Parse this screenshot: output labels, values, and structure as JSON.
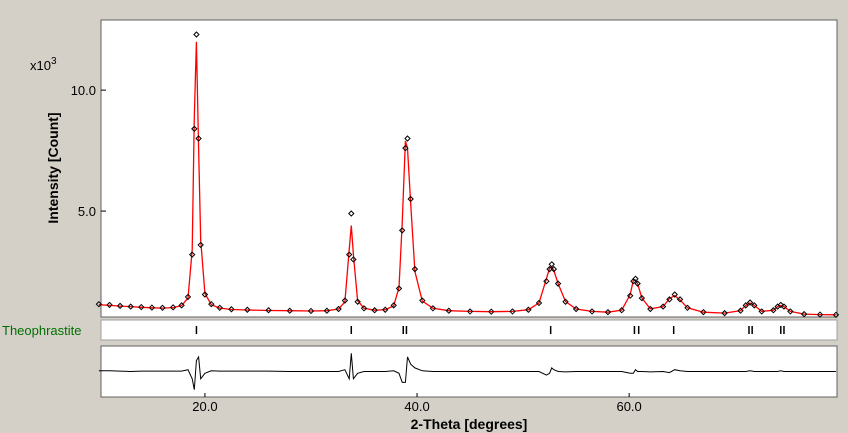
{
  "chart_data": {
    "type": "xrd",
    "x_label": "2-Theta [degrees]",
    "y_label": "Intensity [Count]",
    "y_scale_label": "x10",
    "y_scale_exponent": "3",
    "xlim": [
      10.2,
      79.6
    ],
    "xticks": [
      {
        "value": 20,
        "label": "20.0"
      },
      {
        "value": 40,
        "label": "40.0"
      },
      {
        "value": 60,
        "label": "60.0"
      }
    ],
    "ylim": [
      0.62,
      12.9
    ],
    "yticks": [
      {
        "value": 5,
        "label": "5.0"
      },
      {
        "value": 10,
        "label": "10.0"
      }
    ],
    "x": [
      10,
      11,
      12,
      13,
      14,
      15,
      16,
      17,
      17.8,
      18.4,
      18.8,
      19.0,
      19.2,
      19.4,
      19.6,
      20.0,
      20.6,
      21.4,
      22.5,
      24,
      26,
      28,
      30,
      31.5,
      32.6,
      33.2,
      33.6,
      33.8,
      34.0,
      34.4,
      35,
      36,
      37,
      37.8,
      38.3,
      38.6,
      38.9,
      39.1,
      39.4,
      39.8,
      40.5,
      41.5,
      43,
      45,
      47,
      49,
      50.5,
      51.5,
      52.2,
      52.5,
      52.7,
      52.9,
      53.3,
      54,
      55,
      56.5,
      58,
      59.3,
      60.1,
      60.4,
      60.6,
      60.8,
      61.2,
      62,
      63.2,
      63.8,
      64.3,
      64.8,
      65.5,
      67,
      69,
      70.5,
      71.0,
      71.4,
      71.8,
      72.5,
      73.6,
      74.0,
      74.3,
      74.6,
      75.2,
      76.5,
      78,
      79.5
    ],
    "series": [
      {
        "color": "#000000",
        "marker": "diamond",
        "values": [
          1.15,
          1.12,
          1.08,
          1.05,
          1.03,
          1.01,
          1.0,
          1.02,
          1.1,
          1.45,
          3.2,
          8.4,
          12.3,
          8.0,
          3.6,
          1.55,
          1.15,
          1.0,
          0.94,
          0.92,
          0.9,
          0.88,
          0.87,
          0.88,
          0.95,
          1.3,
          3.2,
          4.9,
          3.0,
          1.25,
          0.98,
          0.9,
          0.92,
          1.1,
          1.8,
          4.2,
          7.6,
          8.0,
          5.5,
          2.6,
          1.3,
          0.98,
          0.88,
          0.85,
          0.84,
          0.85,
          0.92,
          1.2,
          2.1,
          2.6,
          2.8,
          2.6,
          2.0,
          1.25,
          0.95,
          0.85,
          0.82,
          0.9,
          1.5,
          2.1,
          2.2,
          2.0,
          1.4,
          0.95,
          1.05,
          1.35,
          1.55,
          1.35,
          1.0,
          0.82,
          0.78,
          0.88,
          1.1,
          1.22,
          1.1,
          0.85,
          0.9,
          1.05,
          1.12,
          1.05,
          0.85,
          0.74,
          0.72,
          0.71
        ]
      },
      {
        "color": "#ff0000",
        "values": [
          1.13,
          1.1,
          1.07,
          1.05,
          1.02,
          1.0,
          0.99,
          1.01,
          1.09,
          1.4,
          3.4,
          8.9,
          12.0,
          7.6,
          3.8,
          1.6,
          1.13,
          0.99,
          0.93,
          0.91,
          0.89,
          0.88,
          0.87,
          0.88,
          0.95,
          1.25,
          3.4,
          4.4,
          3.2,
          1.3,
          0.98,
          0.9,
          0.92,
          1.08,
          1.85,
          4.5,
          7.9,
          7.6,
          5.3,
          2.5,
          1.28,
          0.98,
          0.88,
          0.85,
          0.84,
          0.85,
          0.92,
          1.2,
          2.2,
          2.65,
          2.7,
          2.55,
          2.0,
          1.26,
          0.95,
          0.85,
          0.82,
          0.9,
          1.55,
          2.15,
          2.15,
          2.0,
          1.4,
          0.96,
          1.05,
          1.38,
          1.5,
          1.33,
          1.0,
          0.82,
          0.78,
          0.88,
          1.1,
          1.2,
          1.1,
          0.85,
          0.9,
          1.05,
          1.1,
          1.05,
          0.85,
          0.74,
          0.72,
          0.71
        ]
      }
    ],
    "difference": {
      "color": "#000000",
      "ylim": [
        -0.7,
        0.7
      ],
      "values": [
        0.02,
        0.02,
        0.01,
        0,
        0.01,
        0.01,
        0.01,
        0.01,
        0.01,
        0.05,
        -0.2,
        -0.5,
        0.3,
        0.4,
        -0.2,
        -0.05,
        0.02,
        0.01,
        0.01,
        0.01,
        0.01,
        0,
        0,
        0,
        0,
        0.05,
        -0.2,
        0.5,
        -0.2,
        -0.05,
        0,
        0,
        0,
        0.02,
        -0.05,
        -0.3,
        -0.3,
        0.4,
        0.2,
        0.1,
        0.02,
        0,
        0,
        0,
        0,
        0,
        0,
        0,
        -0.1,
        -0.05,
        0.1,
        0.05,
        0,
        -0.01,
        0,
        0,
        0,
        0,
        -0.05,
        -0.05,
        0.05,
        0,
        0,
        -0.01,
        0,
        -0.03,
        0.05,
        0.02,
        0,
        0,
        0,
        0,
        0,
        0.02,
        0,
        0,
        0,
        0,
        0.02,
        0,
        0,
        0,
        0,
        0
      ]
    },
    "phases": [
      {
        "name": "Theophrastite",
        "color": "#007000",
        "positions": [
          19.2,
          33.8,
          38.7,
          39.0,
          52.6,
          60.5,
          60.9,
          64.2,
          71.3,
          71.6,
          74.3,
          74.6
        ]
      }
    ]
  }
}
